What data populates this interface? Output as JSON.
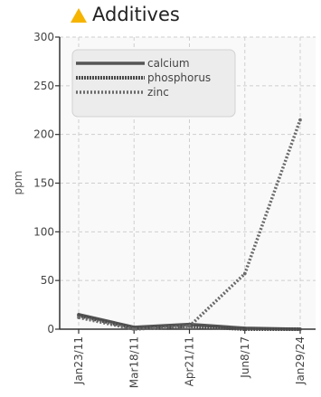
{
  "header": {
    "title": "Additives",
    "icon": "warning-triangle-icon",
    "icon_color": "#f5b400"
  },
  "chart_data": {
    "type": "line",
    "title": "Additives",
    "ylabel": "ppm",
    "xlabel": "",
    "categories": [
      "Jan23/11",
      "Mar18/11",
      "Apr21/11",
      "Jun8/17",
      "Jan29/24"
    ],
    "ylim": [
      0,
      300
    ],
    "yticks": [
      0,
      50,
      100,
      150,
      200,
      250,
      300
    ],
    "grid": true,
    "legend_position": "top-left",
    "series": [
      {
        "name": "calcium",
        "values": [
          15,
          2,
          5,
          1,
          0
        ],
        "style": "solid"
      },
      {
        "name": "phosphorus",
        "values": [
          14,
          1,
          3,
          0,
          0
        ],
        "style": "dense-dotted"
      },
      {
        "name": "zinc",
        "values": [
          12,
          0,
          3,
          57,
          215
        ],
        "style": "dotted"
      }
    ]
  }
}
